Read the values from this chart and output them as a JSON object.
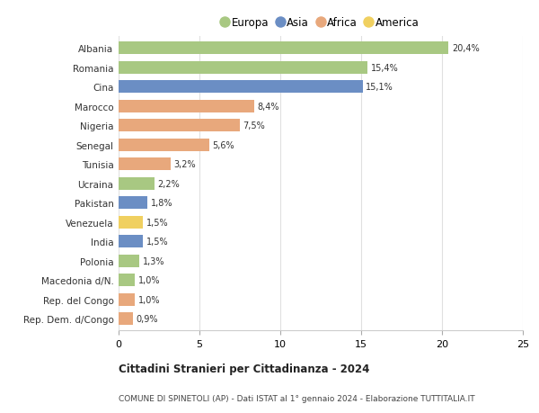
{
  "categories": [
    "Albania",
    "Romania",
    "Cina",
    "Marocco",
    "Nigeria",
    "Senegal",
    "Tunisia",
    "Ucraina",
    "Pakistan",
    "Venezuela",
    "India",
    "Polonia",
    "Macedonia d/N.",
    "Rep. del Congo",
    "Rep. Dem. d/Congo"
  ],
  "values": [
    20.4,
    15.4,
    15.1,
    8.4,
    7.5,
    5.6,
    3.2,
    2.2,
    1.8,
    1.5,
    1.5,
    1.3,
    1.0,
    1.0,
    0.9
  ],
  "labels": [
    "20,4%",
    "15,4%",
    "15,1%",
    "8,4%",
    "7,5%",
    "5,6%",
    "3,2%",
    "2,2%",
    "1,8%",
    "1,5%",
    "1,5%",
    "1,3%",
    "1,0%",
    "1,0%",
    "0,9%"
  ],
  "colors": [
    "#a8c882",
    "#a8c882",
    "#6b8ec4",
    "#e8a87c",
    "#e8a87c",
    "#e8a87c",
    "#e8a87c",
    "#a8c882",
    "#6b8ec4",
    "#f0d060",
    "#6b8ec4",
    "#a8c882",
    "#a8c882",
    "#e8a87c",
    "#e8a87c"
  ],
  "legend_labels": [
    "Europa",
    "Asia",
    "Africa",
    "America"
  ],
  "legend_colors": [
    "#a8c882",
    "#6b8ec4",
    "#e8a87c",
    "#f0d060"
  ],
  "title": "Cittadini Stranieri per Cittadinanza - 2024",
  "subtitle": "COMUNE DI SPINETOLI (AP) - Dati ISTAT al 1° gennaio 2024 - Elaborazione TUTTITALIA.IT",
  "xlim": [
    0,
    25
  ],
  "xticks": [
    0,
    5,
    10,
    15,
    20,
    25
  ],
  "background_color": "#ffffff",
  "bar_height": 0.65,
  "grid_color": "#e0e0e0"
}
